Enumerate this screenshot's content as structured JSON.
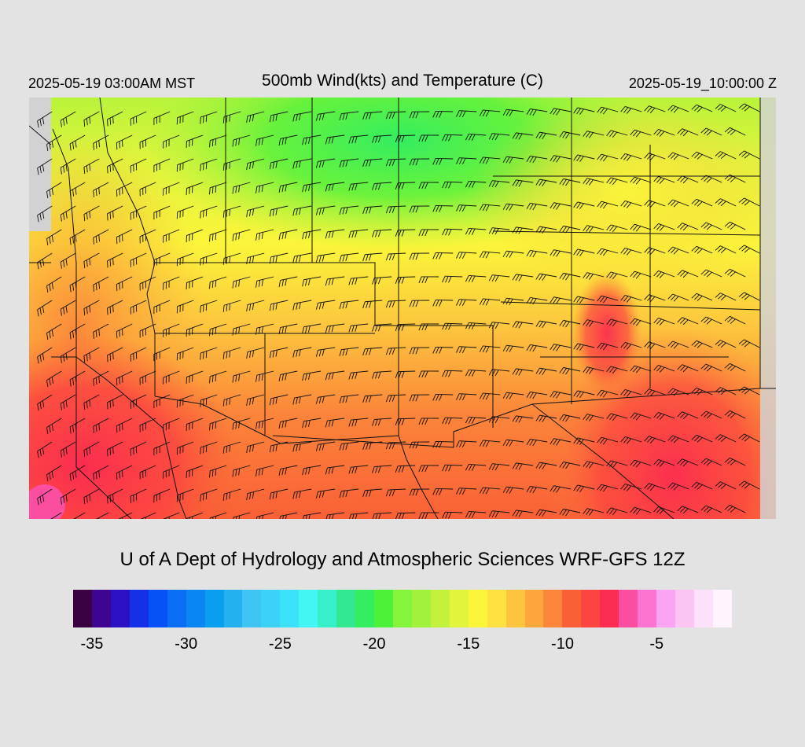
{
  "header": {
    "local_time": "2025-05-19 03:00AM MST",
    "title": "500mb Wind(kts) and Temperature (C)",
    "valid_time": "2025-05-19_10:00:00 Z"
  },
  "footer": {
    "credit": "U of A Dept of Hydrology and Atmospheric Sciences WRF-GFS 12Z"
  },
  "colorbar": {
    "colors": [
      "#3a0040",
      "#3d0590",
      "#2a12c4",
      "#1530e6",
      "#0652f7",
      "#0a6ef5",
      "#0a86f2",
      "#0a9ef0",
      "#25b0f0",
      "#40c4f5",
      "#3ad2f8",
      "#3ce2f9",
      "#43f6f3",
      "#35f0c8",
      "#32e890",
      "#33ee60",
      "#4cf23a",
      "#84f53a",
      "#a2f23c",
      "#c2f23c",
      "#e0f53c",
      "#fbf53a",
      "#fce140",
      "#fdc43e",
      "#fca63c",
      "#fb853a",
      "#fa6036",
      "#fc4440",
      "#fb2c50",
      "#fb4ea0",
      "#fb74d2",
      "#fba4f2",
      "#fcc4f2",
      "#fde0fa",
      "#fff4fd"
    ],
    "tick_labels": [
      "-35",
      "-30",
      "-25",
      "-20",
      "-15",
      "-10",
      "-5"
    ]
  },
  "legend": {
    "value_range": [
      -36,
      -1
    ]
  },
  "map": {
    "region": "Southwestern United States and northern Mexico",
    "field": "500mb temperature (C) shaded, wind barbs (kts)",
    "nodata_color": "#d2d2d2"
  }
}
